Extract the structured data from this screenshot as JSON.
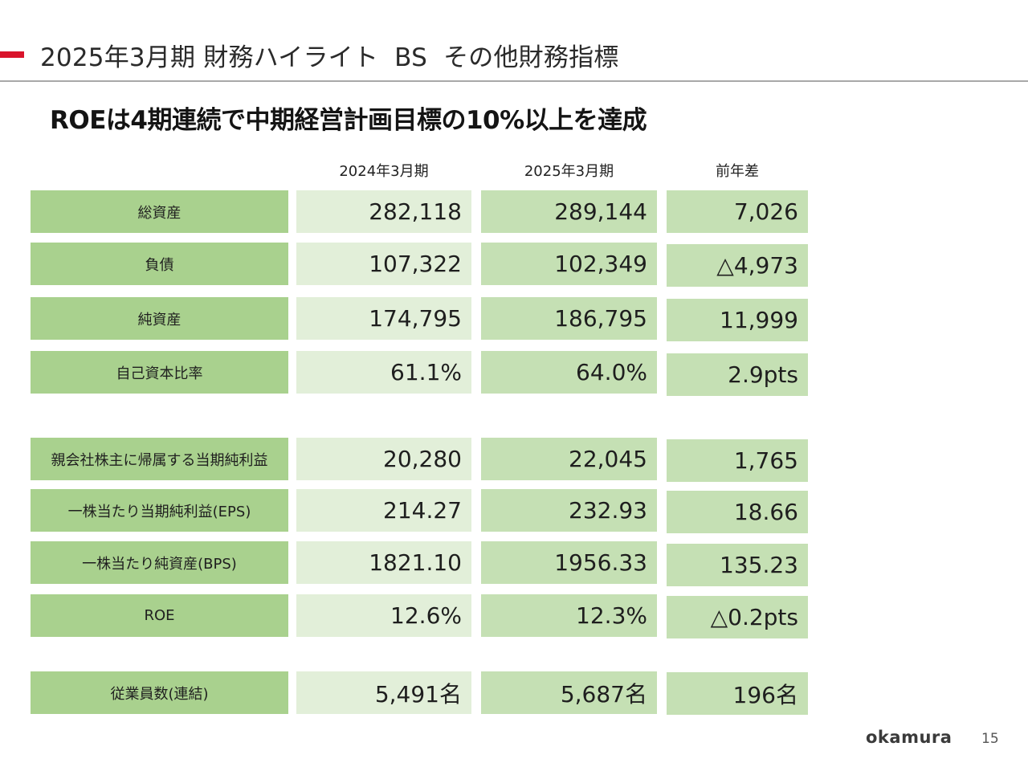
{
  "header": {
    "title": "2025年3月期 財務ハイライト  BS  その他財務指標",
    "accent_color": "#d9142b"
  },
  "headline": "ROEは4期連続で中期経営計画目標の10%以上を達成",
  "table": {
    "columns": [
      "2024年3月期",
      "2025年3月期",
      "前年差"
    ],
    "rows": [
      {
        "label": "総資産",
        "v2024": "282,118",
        "v2025": "289,144",
        "diff": "7,026"
      },
      {
        "label": "負債",
        "v2024": "107,322",
        "v2025": "102,349",
        "diff": "△4,973"
      },
      {
        "label": "純資産",
        "v2024": "174,795",
        "v2025": "186,795",
        "diff": "11,999"
      },
      {
        "label": "自己資本比率",
        "v2024": "61.1%",
        "v2025": "64.0%",
        "diff": "2.9pts"
      },
      {
        "label": "親会社株主に帰属する当期純利益",
        "v2024": "20,280",
        "v2025": "22,045",
        "diff": "1,765"
      },
      {
        "label": "一株当たり当期純利益(EPS)",
        "v2024": "214.27",
        "v2025": "232.93",
        "diff": "18.66"
      },
      {
        "label": "一株当たり純資産(BPS)",
        "v2024": "1821.10",
        "v2025": "1956.33",
        "diff": "135.23"
      },
      {
        "label": "ROE",
        "v2024": "12.6%",
        "v2025": "12.3%",
        "diff": "△0.2pts"
      },
      {
        "label": "従業員数(連結)",
        "v2024": "5,491名",
        "v2025": "5,687名",
        "diff": "196名"
      }
    ],
    "colors": {
      "label_bg": "#a9d18e",
      "v2024_bg": "#e2efd9",
      "v2025_bg": "#c5e0b4",
      "diff_bg": "#c5e0b4"
    }
  },
  "footer": {
    "logo_text": "okamura",
    "page_number": "15"
  }
}
